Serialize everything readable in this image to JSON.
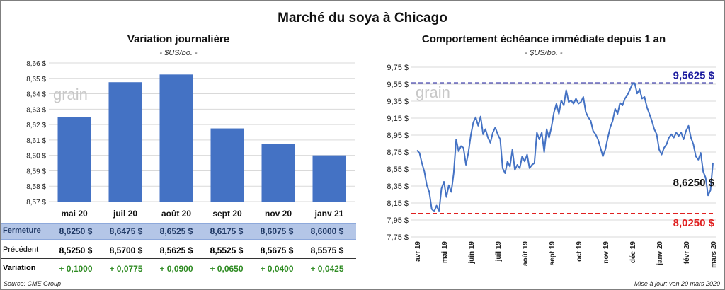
{
  "title": "Marché du soya à Chicago",
  "left": {
    "subtitle": "Variation  journalière",
    "unit": "- $US/bo. -",
    "watermark": "grain",
    "table": {
      "rows": [
        {
          "label": "Fermeture",
          "values": [
            "8,6250  $",
            "8,6475  $",
            "8,6525  $",
            "8,6175  $",
            "8,6075  $",
            "8,6000  $"
          ]
        },
        {
          "label": "Précédent",
          "values": [
            "8,5250  $",
            "8,5700  $",
            "8,5625  $",
            "8,5525  $",
            "8,5675  $",
            "8,5575  $"
          ]
        },
        {
          "label": "Variation",
          "values": [
            "+ 0,1000",
            "+ 0,0775",
            "+ 0,0900",
            "+ 0,0650",
            "+ 0,0400",
            "+ 0,0425"
          ]
        }
      ]
    }
  },
  "right": {
    "subtitle": "Comportement  échéance immédiate depuis 1 an",
    "unit": "- $US/bo. -",
    "watermark": "grain"
  },
  "footer": {
    "source": "Source: CME Group",
    "update": "Mise à jour: ven 20 mars 2020"
  },
  "chart_data": [
    {
      "type": "bar",
      "categories": [
        "mai 20",
        "juil 20",
        "août 20",
        "sept 20",
        "nov 20",
        "janv 21"
      ],
      "values": [
        8.625,
        8.6475,
        8.6525,
        8.6175,
        8.6075,
        8.6
      ],
      "ylim": [
        8.57,
        8.66
      ],
      "yticks": [
        8.57,
        8.58,
        8.59,
        8.6,
        8.61,
        8.62,
        8.63,
        8.64,
        8.65,
        8.66
      ],
      "ytick_labels": [
        "8,57 $",
        "8,58 $",
        "8,59 $",
        "8,60 $",
        "8,61 $",
        "8,62 $",
        "8,63 $",
        "8,64 $",
        "8,65 $",
        "8,66 $"
      ],
      "color": "#4472c4",
      "grid": true
    },
    {
      "type": "line",
      "x_start": "avr 19",
      "x_end": "mars 20",
      "xtick_labels": [
        "avr 19",
        "mai 19",
        "juin 19",
        "juil 19",
        "août 19",
        "sept 19",
        "oct 19",
        "nov 19",
        "déc 19",
        "janv 20",
        "févr 20",
        "mars 20"
      ],
      "ylim": [
        7.75,
        9.75
      ],
      "yticks": [
        7.75,
        7.95,
        8.15,
        8.35,
        8.55,
        8.75,
        8.95,
        9.15,
        9.35,
        9.55,
        9.75
      ],
      "ytick_labels": [
        "7,75 $",
        "7,95 $",
        "8,15 $",
        "8,35 $",
        "8,55 $",
        "8,75 $",
        "8,95 $",
        "9,15 $",
        "9,35 $",
        "9,55 $",
        "9,75 $"
      ],
      "grid": true,
      "series_color": "#4472c4",
      "values": [
        8.77,
        8.74,
        8.62,
        8.52,
        8.36,
        8.28,
        8.08,
        8.05,
        8.12,
        8.05,
        8.32,
        8.4,
        8.22,
        8.36,
        8.28,
        8.5,
        8.9,
        8.76,
        8.82,
        8.8,
        8.6,
        8.74,
        8.95,
        9.1,
        9.16,
        9.06,
        9.17,
        8.96,
        9.02,
        8.92,
        8.86,
        8.98,
        9.04,
        8.96,
        8.9,
        8.56,
        8.5,
        8.64,
        8.58,
        8.78,
        8.54,
        8.6,
        8.56,
        8.7,
        8.64,
        8.72,
        8.56,
        8.6,
        8.62,
        8.98,
        8.9,
        8.98,
        8.75,
        9.02,
        8.92,
        9.05,
        9.22,
        9.32,
        9.2,
        9.36,
        9.3,
        9.48,
        9.34,
        9.36,
        9.32,
        9.38,
        9.32,
        9.34,
        9.4,
        9.22,
        9.16,
        9.12,
        9.0,
        8.96,
        8.9,
        8.8,
        8.7,
        8.78,
        8.92,
        9.04,
        9.12,
        9.26,
        9.2,
        9.33,
        9.3,
        9.38,
        9.42,
        9.48,
        9.55,
        9.5625,
        9.44,
        9.49,
        9.38,
        9.4,
        9.28,
        9.2,
        9.12,
        9.02,
        8.96,
        8.78,
        8.72,
        8.8,
        8.84,
        8.92,
        8.96,
        8.92,
        8.98,
        8.94,
        8.98,
        8.9,
        9.0,
        9.06,
        8.92,
        8.84,
        8.7,
        8.66,
        8.74,
        8.52,
        8.45,
        8.24,
        8.3,
        8.625
      ],
      "reference_lines": [
        {
          "value": 9.5625,
          "label": "9,5625  $",
          "color": "#1f1fa0"
        },
        {
          "value": 8.025,
          "label": "8,0250  $",
          "color": "#e02020"
        }
      ],
      "last_label": "8,6250 $"
    }
  ]
}
